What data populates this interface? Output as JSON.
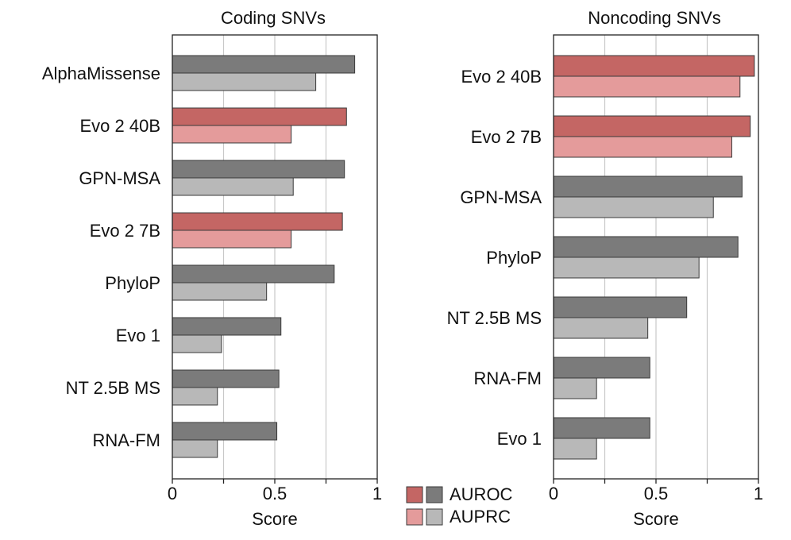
{
  "colors": {
    "highlight_auroc": "#c46664",
    "highlight_auprc": "#e49b9b",
    "base_auroc": "#7b7b7b",
    "base_auprc": "#b8b8b8",
    "bar_edge": "#3a3a3a",
    "grid": "#c8c8c8"
  },
  "legend": {
    "auroc_label": "AUROC",
    "auprc_label": "AUPRC"
  },
  "chart_data": [
    {
      "type": "bar",
      "orientation": "horizontal",
      "title": "Coding SNVs",
      "xlabel": "Score",
      "xlim": [
        0,
        1
      ],
      "xticks": [
        0,
        0.25,
        0.5,
        0.75,
        1
      ],
      "xtick_labels": [
        "0",
        "",
        "0.5",
        "",
        "1"
      ],
      "categories": [
        "AlphaMissense",
        "Evo 2 40B",
        "GPN-MSA",
        "Evo 2 7B",
        "PhyloP",
        "Evo 1",
        "NT 2.5B MS",
        "RNA-FM"
      ],
      "highlighted": [
        "Evo 2 40B",
        "Evo 2 7B"
      ],
      "series": [
        {
          "name": "AUROC",
          "values": [
            0.89,
            0.85,
            0.84,
            0.83,
            0.79,
            0.53,
            0.52,
            0.51
          ]
        },
        {
          "name": "AUPRC",
          "values": [
            0.7,
            0.58,
            0.59,
            0.58,
            0.46,
            0.24,
            0.22,
            0.22
          ]
        }
      ]
    },
    {
      "type": "bar",
      "orientation": "horizontal",
      "title": "Noncoding SNVs",
      "xlabel": "Score",
      "xlim": [
        0,
        1
      ],
      "xticks": [
        0,
        0.25,
        0.5,
        0.75,
        1
      ],
      "xtick_labels": [
        "0",
        "",
        "0.5",
        "",
        "1"
      ],
      "categories": [
        "Evo 2 40B",
        "Evo 2 7B",
        "GPN-MSA",
        "PhyloP",
        "NT 2.5B MS",
        "RNA-FM",
        "Evo 1"
      ],
      "highlighted": [
        "Evo 2 40B",
        "Evo 2 7B"
      ],
      "series": [
        {
          "name": "AUROC",
          "values": [
            0.98,
            0.96,
            0.92,
            0.9,
            0.65,
            0.47,
            0.47
          ]
        },
        {
          "name": "AUPRC",
          "values": [
            0.91,
            0.87,
            0.78,
            0.71,
            0.46,
            0.21,
            0.21
          ]
        }
      ]
    }
  ]
}
